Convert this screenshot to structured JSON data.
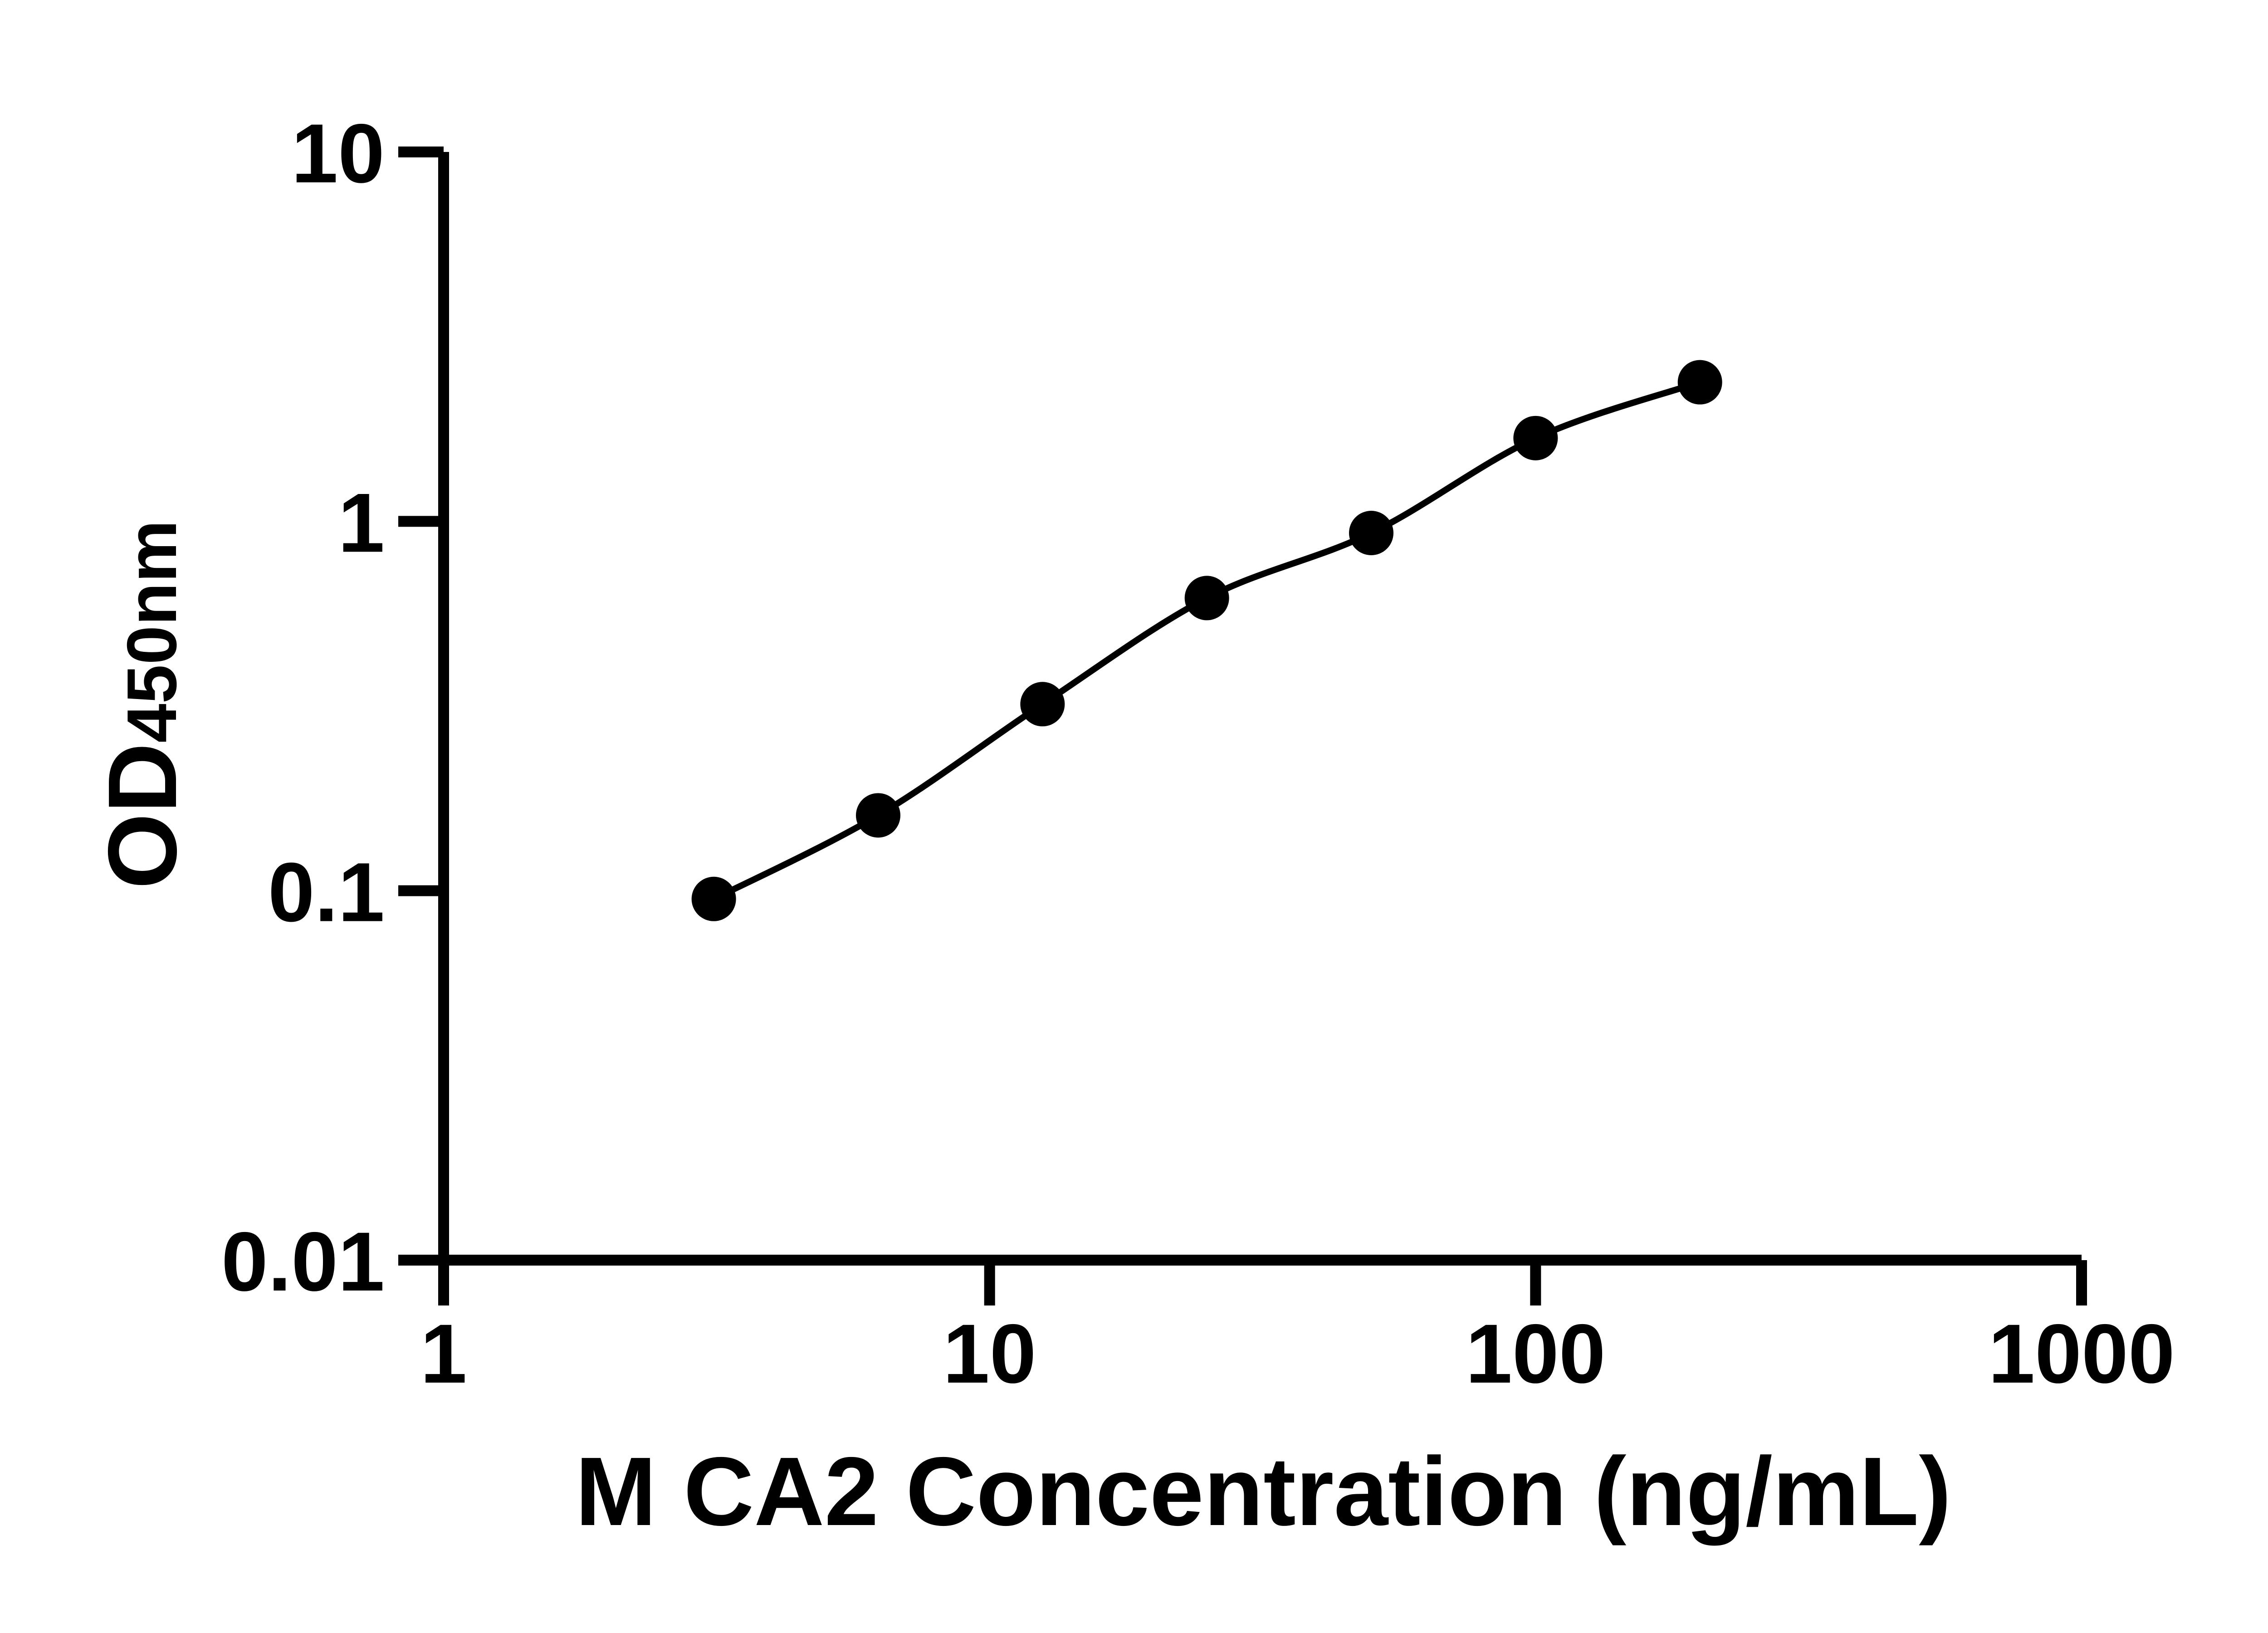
{
  "chart_data": {
    "type": "line",
    "title": "",
    "xlabel": "M CA2 Concentration (ng/mL)",
    "ylabel_main": "OD",
    "ylabel_sub": "450nm",
    "x_scale": "log10",
    "y_scale": "log10",
    "xlim": [
      1,
      1000
    ],
    "ylim": [
      0.01,
      10
    ],
    "grid": false,
    "legend": "none",
    "x": [
      3.125,
      6.25,
      12.5,
      25,
      50,
      100,
      200
    ],
    "y": [
      0.095,
      0.16,
      0.32,
      0.62,
      0.93,
      1.68,
      2.38
    ],
    "x_ticks": [
      {
        "value": 1,
        "label": "1"
      },
      {
        "value": 10,
        "label": "10"
      },
      {
        "value": 100,
        "label": "100"
      },
      {
        "value": 1000,
        "label": "1000"
      }
    ],
    "y_ticks": [
      {
        "value": 10,
        "label": "10"
      },
      {
        "value": 1,
        "label": "1"
      },
      {
        "value": 0.1,
        "label": "0.1"
      },
      {
        "value": 0.01,
        "label": "0.01"
      }
    ],
    "ink_color": "#000000",
    "background_color": "#ffffff",
    "marker_color": "#000000",
    "line_color": "#000000"
  }
}
